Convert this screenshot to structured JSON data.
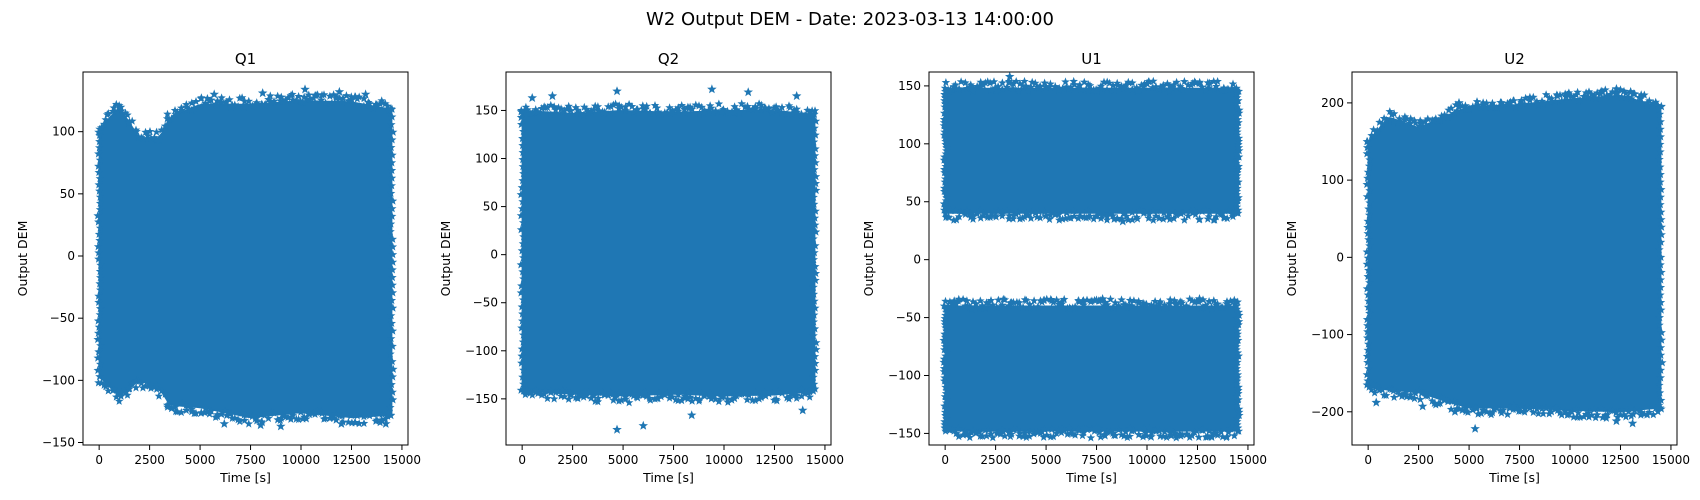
{
  "figure": {
    "suptitle": "W2 Output DEM - Date: 2023-03-13 14:00:00"
  },
  "colors": {
    "marker": "#1f77b4",
    "axes": "#000000",
    "background": "#ffffff"
  },
  "chart_data": [
    {
      "type": "scatter",
      "title": "Q1",
      "xlabel": "Time [s]",
      "ylabel": "Output DEM",
      "marker": "star",
      "grid": false,
      "xlim": [
        -800,
        15300
      ],
      "ylim": [
        -152,
        148
      ],
      "xticks": [
        0,
        2500,
        5000,
        7500,
        10000,
        12500,
        15000
      ],
      "yticks": [
        -150,
        -100,
        -50,
        0,
        50,
        100
      ],
      "x_range": [
        0,
        14500
      ],
      "envelope_x": [
        0,
        1000,
        2000,
        3000,
        3500,
        5000,
        7500,
        10000,
        12500,
        14500
      ],
      "envelope_upper": [
        102,
        120,
        95,
        95,
        112,
        122,
        122,
        125,
        124,
        118
      ],
      "envelope_lower": [
        -97,
        -113,
        -100,
        -107,
        -120,
        -122,
        -130,
        -126,
        -130,
        -128
      ],
      "outliers": [
        [
          5700,
          130
        ],
        [
          8100,
          131
        ],
        [
          10200,
          134
        ],
        [
          11900,
          132
        ],
        [
          13200,
          130
        ],
        [
          6200,
          -135
        ],
        [
          8000,
          -136
        ],
        [
          9000,
          -137
        ],
        [
          12000,
          -135
        ],
        [
          14200,
          -135
        ]
      ]
    },
    {
      "type": "scatter",
      "title": "Q2",
      "xlabel": "Time [s]",
      "ylabel": "Output DEM",
      "marker": "star",
      "grid": false,
      "xlim": [
        -800,
        15300
      ],
      "ylim": [
        -198,
        190
      ],
      "xticks": [
        0,
        2500,
        5000,
        7500,
        10000,
        12500,
        15000
      ],
      "yticks": [
        -150,
        -100,
        -50,
        0,
        50,
        100,
        150
      ],
      "x_range": [
        0,
        14500
      ],
      "envelope_x": [
        0,
        2500,
        5000,
        7500,
        10000,
        12500,
        14500
      ],
      "envelope_upper": [
        150,
        147,
        150,
        148,
        150,
        150,
        146
      ],
      "envelope_lower": [
        -142,
        -145,
        -147,
        -145,
        -147,
        -146,
        -142
      ],
      "outliers": [
        [
          500,
          163
        ],
        [
          1500,
          165
        ],
        [
          4700,
          170
        ],
        [
          9400,
          172
        ],
        [
          11200,
          169
        ],
        [
          13600,
          165
        ],
        [
          4700,
          -182
        ],
        [
          6000,
          -178
        ],
        [
          8400,
          -167
        ],
        [
          13900,
          -162
        ]
      ]
    },
    {
      "type": "scatter",
      "title": "U1",
      "xlabel": "Time [s]",
      "ylabel": "Output DEM",
      "marker": "star",
      "grid": false,
      "xlim": [
        -800,
        15300
      ],
      "ylim": [
        -160,
        162
      ],
      "xticks": [
        0,
        2500,
        5000,
        7500,
        10000,
        12500,
        15000
      ],
      "yticks": [
        -150,
        -100,
        -50,
        0,
        50,
        100,
        150
      ],
      "x_range": [
        0,
        14500
      ],
      "bands": [
        {
          "upper": 148,
          "lower": 40
        },
        {
          "upper": -40,
          "lower": -148
        }
      ],
      "outliers": [
        [
          3200,
          158
        ],
        [
          10000,
          152
        ],
        [
          8800,
          33
        ],
        [
          7800,
          -34
        ],
        [
          12600,
          -34
        ],
        [
          10200,
          -153
        ],
        [
          11200,
          -152
        ],
        [
          13000,
          -153
        ]
      ]
    },
    {
      "type": "scatter",
      "title": "U2",
      "xlabel": "Time [s]",
      "ylabel": "Output DEM",
      "marker": "star",
      "grid": false,
      "xlim": [
        -800,
        15300
      ],
      "ylim": [
        -243,
        240
      ],
      "xticks": [
        0,
        2500,
        5000,
        7500,
        10000,
        12500,
        15000
      ],
      "yticks": [
        -200,
        -100,
        0,
        100,
        200
      ],
      "x_range": [
        0,
        14500
      ],
      "envelope_x": [
        0,
        1000,
        2500,
        4000,
        5000,
        7500,
        10000,
        12500,
        14500
      ],
      "envelope_upper": [
        150,
        182,
        168,
        185,
        195,
        198,
        205,
        210,
        195
      ],
      "envelope_lower": [
        -168,
        -172,
        -175,
        -188,
        -195,
        -195,
        -198,
        -200,
        -195
      ],
      "outliers": [
        [
          4500,
          200
        ],
        [
          9800,
          208
        ],
        [
          11500,
          212
        ],
        [
          12300,
          218
        ],
        [
          13000,
          214
        ],
        [
          400,
          -188
        ],
        [
          2700,
          -193
        ],
        [
          4300,
          -200
        ],
        [
          5300,
          -222
        ],
        [
          12300,
          -212
        ],
        [
          13100,
          -215
        ]
      ]
    }
  ]
}
